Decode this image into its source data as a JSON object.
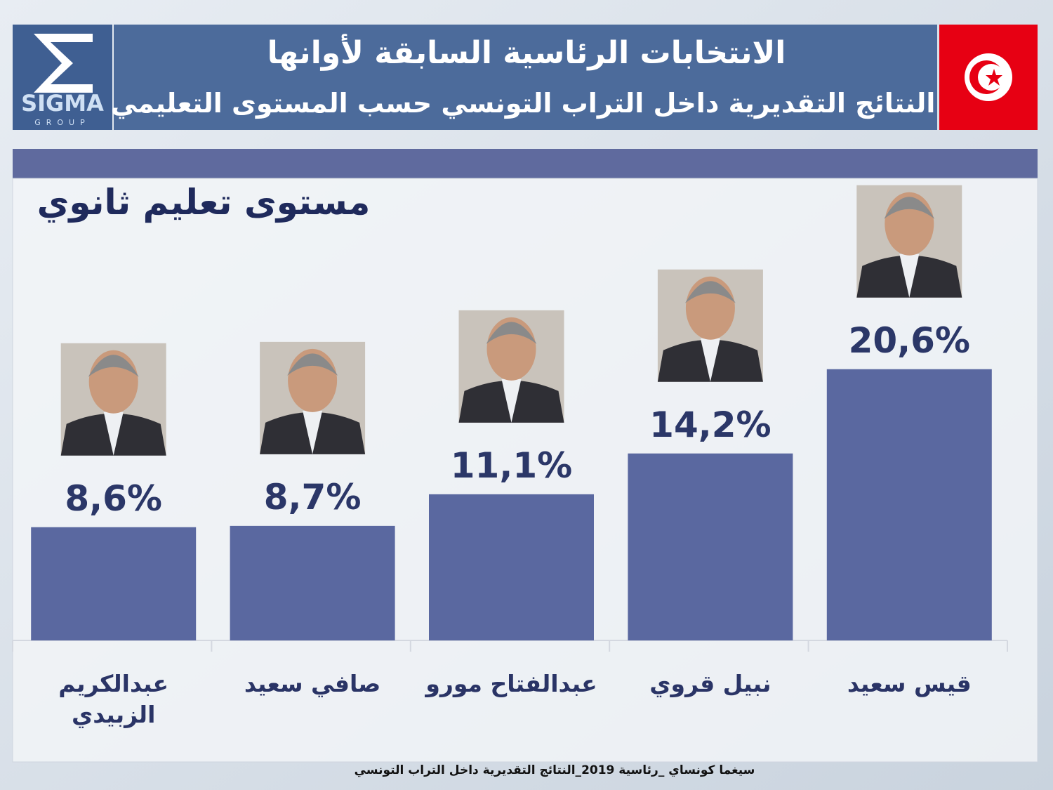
{
  "header": {
    "title": "الانتخابات الرئاسية السابقة لأوانها",
    "subtitle": "النتائج التقديرية داخل التراب التونسي حسب المستوى التعليمي"
  },
  "logo": {
    "name": "SIGMA",
    "tagline": "GROUP"
  },
  "chart_data": {
    "type": "bar",
    "title": "مستوى تعليم ثانوي",
    "categories": [
      "عبدالكريم الزبيدي",
      "صافي سعيد",
      "عبدالفتاح مورو",
      "نبيل قروي",
      "قيس سعيد"
    ],
    "values": [
      8.6,
      8.7,
      11.1,
      14.2,
      20.6
    ],
    "value_labels": [
      "8,6%",
      "8,7%",
      "11,1%",
      "14,2%",
      "20,6%"
    ],
    "color": "#5a68a0"
  },
  "footer": "سيغما كونساي _رئاسية 2019_النتائج التقديرية داخل التراب التونسي"
}
